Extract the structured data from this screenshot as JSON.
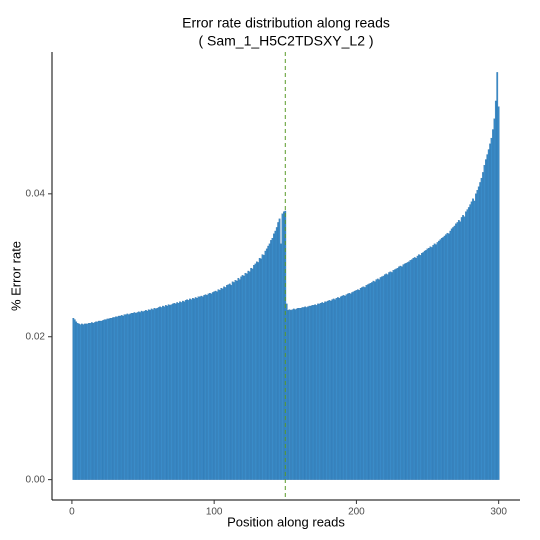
{
  "chart_data": {
    "type": "bar",
    "title": "Error rate distribution along reads",
    "subtitle": "( Sam_1_H5C2TDSXY_L2 )",
    "x_label": "Position along reads",
    "y_label": "% Error rate",
    "color": "#3a8cc9",
    "edge_color": "#2a6fa8",
    "vline": 150,
    "vline_color": "#5a9a2a",
    "grid": false,
    "xlim": [
      -14,
      315
    ],
    "xticks": [
      0,
      100,
      200,
      300
    ],
    "ylim": [
      -0.00285,
      0.05985
    ],
    "yticks": [
      {
        "value": 0,
        "label": "0.00"
      },
      0.02,
      0.04
    ],
    "x": [
      1,
      2,
      3,
      4,
      5,
      6,
      7,
      8,
      9,
      10,
      11,
      12,
      13,
      14,
      15,
      16,
      17,
      18,
      19,
      20,
      21,
      22,
      23,
      24,
      25,
      26,
      27,
      28,
      29,
      30,
      31,
      32,
      33,
      34,
      35,
      36,
      37,
      38,
      39,
      40,
      41,
      42,
      43,
      44,
      45,
      46,
      47,
      48,
      49,
      50,
      51,
      52,
      53,
      54,
      55,
      56,
      57,
      58,
      59,
      60,
      61,
      62,
      63,
      64,
      65,
      66,
      67,
      68,
      69,
      70,
      71,
      72,
      73,
      74,
      75,
      76,
      77,
      78,
      79,
      80,
      81,
      82,
      83,
      84,
      85,
      86,
      87,
      88,
      89,
      90,
      91,
      92,
      93,
      94,
      95,
      96,
      97,
      98,
      99,
      100,
      101,
      102,
      103,
      104,
      105,
      106,
      107,
      108,
      109,
      110,
      111,
      112,
      113,
      114,
      115,
      116,
      117,
      118,
      119,
      120,
      121,
      122,
      123,
      124,
      125,
      126,
      127,
      128,
      129,
      130,
      131,
      132,
      133,
      134,
      135,
      136,
      137,
      138,
      139,
      140,
      141,
      142,
      143,
      144,
      145,
      146,
      147,
      148,
      149,
      150,
      151,
      152,
      153,
      154,
      155,
      156,
      157,
      158,
      159,
      160,
      161,
      162,
      163,
      164,
      165,
      166,
      167,
      168,
      169,
      170,
      171,
      172,
      173,
      174,
      175,
      176,
      177,
      178,
      179,
      180,
      181,
      182,
      183,
      184,
      185,
      186,
      187,
      188,
      189,
      190,
      191,
      192,
      193,
      194,
      195,
      196,
      197,
      198,
      199,
      200,
      201,
      202,
      203,
      204,
      205,
      206,
      207,
      208,
      209,
      210,
      211,
      212,
      213,
      214,
      215,
      216,
      217,
      218,
      219,
      220,
      221,
      222,
      223,
      224,
      225,
      226,
      227,
      228,
      229,
      230,
      231,
      232,
      233,
      234,
      235,
      236,
      237,
      238,
      239,
      240,
      241,
      242,
      243,
      244,
      245,
      246,
      247,
      248,
      249,
      250,
      251,
      252,
      253,
      254,
      255,
      256,
      257,
      258,
      259,
      260,
      261,
      262,
      263,
      264,
      265,
      266,
      267,
      268,
      269,
      270,
      271,
      272,
      273,
      274,
      275,
      276,
      277,
      278,
      279,
      280,
      281,
      282,
      283,
      284,
      285,
      286,
      287,
      288,
      289,
      290,
      291,
      292,
      293,
      294,
      295,
      296,
      297,
      298,
      299,
      300
    ],
    "values": [
      0.0226,
      0.0224,
      0.0221,
      0.0219,
      0.0218,
      0.0217,
      0.0218,
      0.0217,
      0.0218,
      0.0218,
      0.0218,
      0.0219,
      0.0219,
      0.022,
      0.0219,
      0.022,
      0.0221,
      0.0221,
      0.0222,
      0.0222,
      0.0222,
      0.0223,
      0.0224,
      0.0224,
      0.0225,
      0.0225,
      0.0226,
      0.0226,
      0.0227,
      0.0227,
      0.0228,
      0.0228,
      0.0229,
      0.0229,
      0.023,
      0.0229,
      0.0231,
      0.0231,
      0.0232,
      0.0231,
      0.0232,
      0.0233,
      0.0233,
      0.0234,
      0.0233,
      0.0234,
      0.0235,
      0.0234,
      0.0236,
      0.0235,
      0.0236,
      0.0237,
      0.0236,
      0.0238,
      0.0237,
      0.0239,
      0.0238,
      0.024,
      0.0239,
      0.024,
      0.0241,
      0.0242,
      0.0241,
      0.0243,
      0.0242,
      0.0244,
      0.0243,
      0.0245,
      0.0244,
      0.0245,
      0.0246,
      0.0247,
      0.0246,
      0.0248,
      0.0247,
      0.0249,
      0.0248,
      0.025,
      0.0249,
      0.0251,
      0.0252,
      0.0251,
      0.0253,
      0.0252,
      0.0254,
      0.0253,
      0.0255,
      0.0254,
      0.0256,
      0.0256,
      0.0257,
      0.0256,
      0.0258,
      0.0259,
      0.0258,
      0.026,
      0.0261,
      0.026,
      0.0262,
      0.0263,
      0.0264,
      0.0263,
      0.0266,
      0.0265,
      0.0268,
      0.0267,
      0.027,
      0.0269,
      0.0272,
      0.0273,
      0.0274,
      0.0272,
      0.0277,
      0.0276,
      0.0279,
      0.0278,
      0.0282,
      0.028,
      0.0284,
      0.0286,
      0.0285,
      0.0289,
      0.0288,
      0.0292,
      0.0291,
      0.0296,
      0.0295,
      0.03,
      0.0302,
      0.0305,
      0.0304,
      0.031,
      0.0309,
      0.0315,
      0.0314,
      0.032,
      0.0323,
      0.0327,
      0.033,
      0.0335,
      0.0338,
      0.0344,
      0.0348,
      0.0353,
      0.036,
      0.0365,
      0.033,
      0.0372,
      0.0375,
      0.0376,
      0.0246,
      0.0237,
      0.0238,
      0.0237,
      0.0238,
      0.0239,
      0.0238,
      0.0239,
      0.024,
      0.024,
      0.024,
      0.0241,
      0.0241,
      0.0242,
      0.0241,
      0.0242,
      0.0243,
      0.0243,
      0.0244,
      0.0244,
      0.0245,
      0.0244,
      0.0246,
      0.0246,
      0.0247,
      0.0248,
      0.0247,
      0.0249,
      0.0249,
      0.025,
      0.0251,
      0.025,
      0.0252,
      0.0253,
      0.0252,
      0.0254,
      0.0255,
      0.0254,
      0.0256,
      0.0257,
      0.0258,
      0.0257,
      0.0259,
      0.026,
      0.0261,
      0.026,
      0.0262,
      0.0263,
      0.0264,
      0.0265,
      0.0266,
      0.0265,
      0.0268,
      0.0269,
      0.027,
      0.0269,
      0.0272,
      0.0273,
      0.0274,
      0.0275,
      0.0276,
      0.0278,
      0.0277,
      0.028,
      0.0281,
      0.028,
      0.0283,
      0.0284,
      0.0285,
      0.0287,
      0.0288,
      0.0287,
      0.029,
      0.0291,
      0.029,
      0.0293,
      0.0294,
      0.0295,
      0.0296,
      0.0298,
      0.0299,
      0.0298,
      0.0301,
      0.0302,
      0.0303,
      0.0304,
      0.0305,
      0.0307,
      0.0308,
      0.031,
      0.0311,
      0.031,
      0.0313,
      0.0315,
      0.0314,
      0.0317,
      0.0318,
      0.032,
      0.0321,
      0.0323,
      0.0324,
      0.0326,
      0.0325,
      0.0328,
      0.033,
      0.0329,
      0.0332,
      0.0334,
      0.0336,
      0.0338,
      0.0339,
      0.0341,
      0.0343,
      0.0345,
      0.0344,
      0.0348,
      0.0351,
      0.0353,
      0.0355,
      0.0358,
      0.036,
      0.0363,
      0.0361,
      0.0367,
      0.037,
      0.0368,
      0.0375,
      0.0378,
      0.0381,
      0.0385,
      0.0389,
      0.0393,
      0.039,
      0.04,
      0.0405,
      0.041,
      0.0416,
      0.0422,
      0.043,
      0.044,
      0.0448,
      0.0455,
      0.0462,
      0.047,
      0.0478,
      0.049,
      0.0505,
      0.053,
      0.057,
      0.0522
    ]
  }
}
